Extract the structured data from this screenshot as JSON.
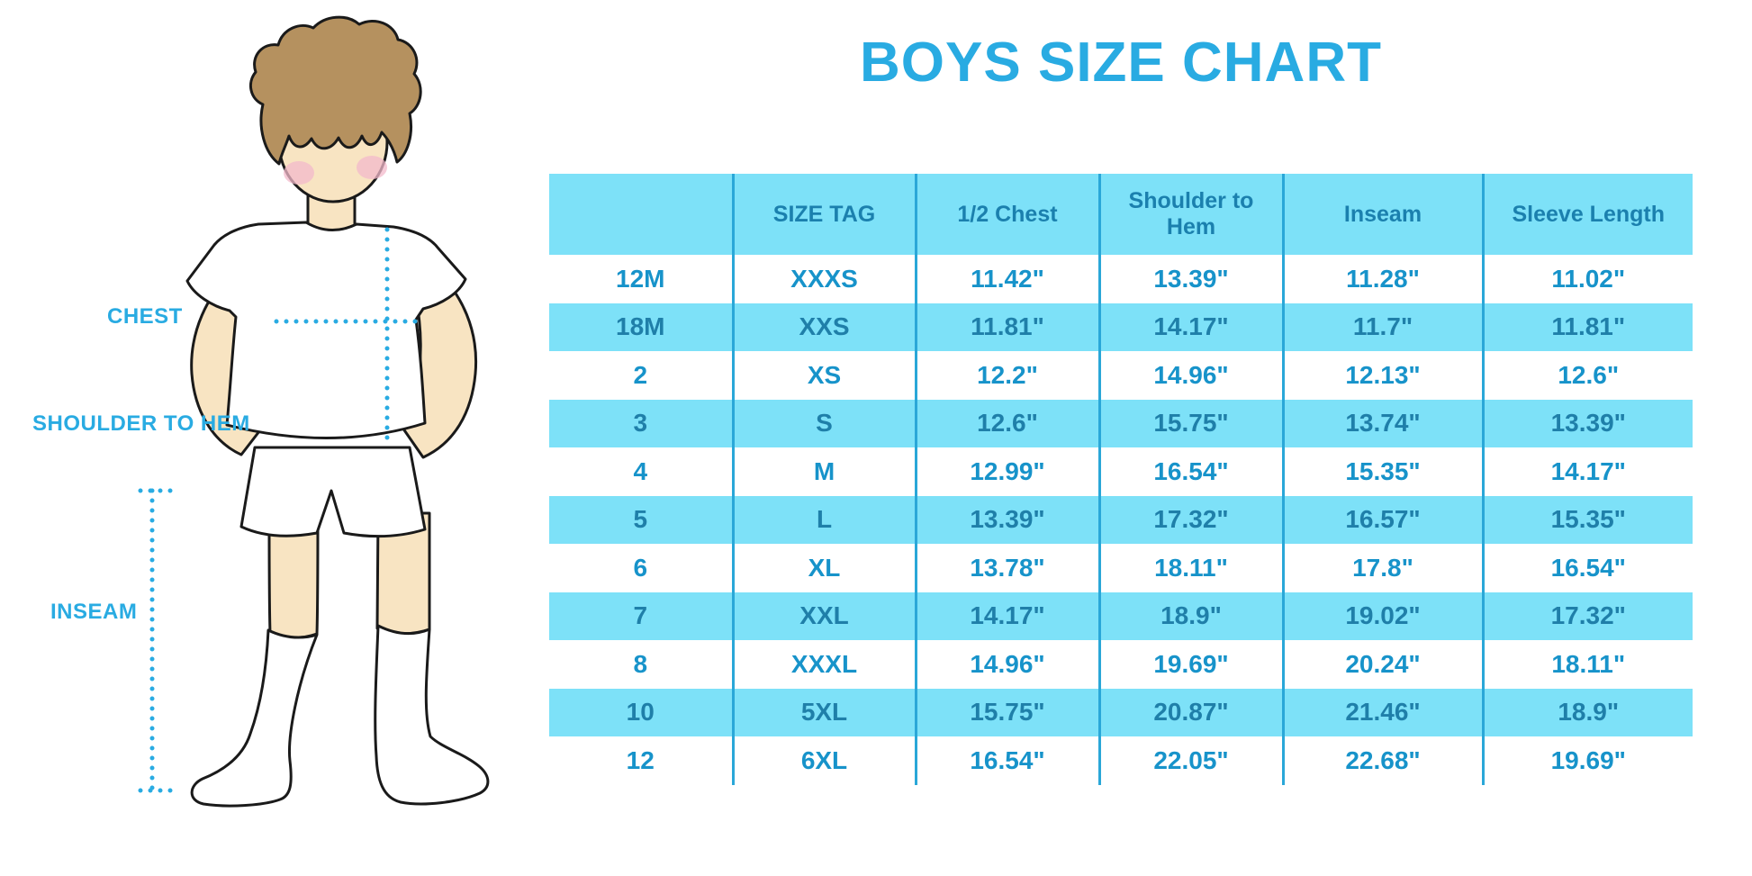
{
  "page": {
    "title": "BOYS SIZE CHART"
  },
  "figure": {
    "labels": {
      "chest": "CHEST",
      "shoulder_to_hem": "SHOULDER TO HEM",
      "inseam": "INSEAM"
    }
  },
  "chart_data": {
    "type": "table",
    "title": "BOYS SIZE CHART",
    "columns": [
      "",
      "SIZE TAG",
      "1/2 Chest",
      "Shoulder to Hem",
      "Inseam",
      "Sleeve Length"
    ],
    "rows": [
      [
        "12M",
        "XXXS",
        "11.42\"",
        "13.39\"",
        "11.28\"",
        "11.02\""
      ],
      [
        "18M",
        "XXS",
        "11.81\"",
        "14.17\"",
        "11.7\"",
        "11.81\""
      ],
      [
        "2",
        "XS",
        "12.2\"",
        "14.96\"",
        "12.13\"",
        "12.6\""
      ],
      [
        "3",
        "S",
        "12.6\"",
        "15.75\"",
        "13.74\"",
        "13.39\""
      ],
      [
        "4",
        "M",
        "12.99\"",
        "16.54\"",
        "15.35\"",
        "14.17\""
      ],
      [
        "5",
        "L",
        "13.39\"",
        "17.32\"",
        "16.57\"",
        "15.35\""
      ],
      [
        "6",
        "XL",
        "13.78\"",
        "18.11\"",
        "17.8\"",
        "16.54\""
      ],
      [
        "7",
        "XXL",
        "14.17\"",
        "18.9\"",
        "19.02\"",
        "17.32\""
      ],
      [
        "8",
        "XXXL",
        "14.96\"",
        "19.69\"",
        "20.24\"",
        "18.11\""
      ],
      [
        "10",
        "5XL",
        "15.75\"",
        "20.87\"",
        "21.46\"",
        "18.9\""
      ],
      [
        "12",
        "6XL",
        "16.54\"",
        "22.05\"",
        "22.68\"",
        "19.69\""
      ]
    ]
  },
  "colors": {
    "accent_blue": "#29abe2",
    "table_stripe": "#7de1f8",
    "header_text": "#1b80ae",
    "row_text": "#1793ca",
    "stripe_row_text": "#1f7fa9",
    "divider": "#2aa7d8",
    "skin": "#f8e4c2",
    "hair": "#b5915f",
    "blush": "#f3bacb"
  }
}
